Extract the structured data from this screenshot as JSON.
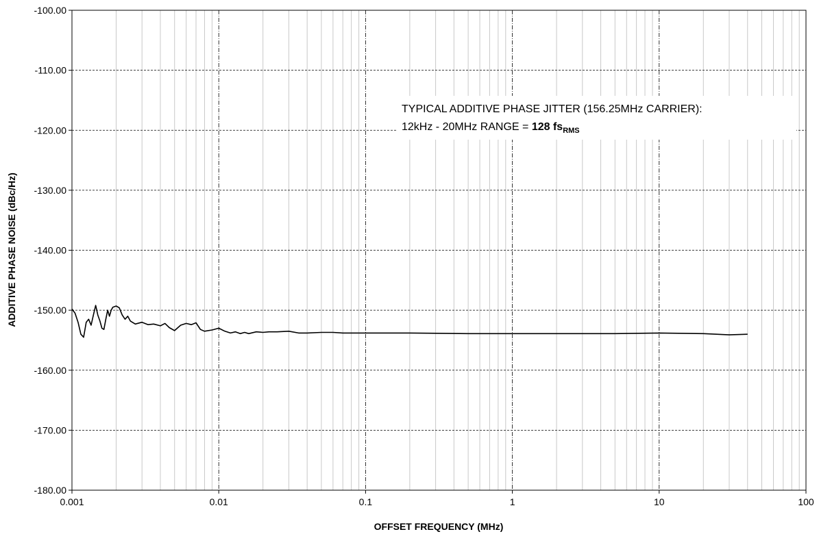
{
  "chart_data": {
    "type": "line",
    "title": "",
    "xlabel": "OFFSET FREQUENCY (MHz)",
    "ylabel": "ADDITIVE PHASE NOISE (dBc/Hz)",
    "x_scale": "log",
    "xlim": [
      0.001,
      100
    ],
    "ylim": [
      -180,
      -100
    ],
    "x_ticks": [
      0.001,
      0.01,
      0.1,
      1,
      10,
      100
    ],
    "x_tick_labels": [
      "0.001",
      "0.01",
      "0.1",
      "1",
      "10",
      "100"
    ],
    "y_ticks": [
      -100,
      -110,
      -120,
      -130,
      -140,
      -150,
      -160,
      -170,
      -180
    ],
    "y_tick_labels": [
      "-100.00",
      "-110.00",
      "-120.00",
      "-130.00",
      "-140.00",
      "-150.00",
      "-160.00",
      "-170.00",
      "-180.00"
    ],
    "grid": true,
    "line_color": "#000000",
    "annotation": {
      "line1": "TYPICAL ADDITIVE PHASE JITTER (156.25MHz CARRIER):",
      "line2_prefix": "12kHz - 20MHz RANGE = ",
      "line2_value": "128 fs",
      "line2_subscript": "RMS"
    },
    "series": [
      {
        "x": [
          0.001,
          0.00105,
          0.0011,
          0.00115,
          0.0012,
          0.00125,
          0.0013,
          0.00135,
          0.0014,
          0.00145,
          0.0015,
          0.00155,
          0.0016,
          0.00165,
          0.0017,
          0.00175,
          0.0018,
          0.00185,
          0.0019,
          0.002,
          0.0021,
          0.0022,
          0.0023,
          0.0024,
          0.0025,
          0.0027,
          0.003,
          0.0033,
          0.0036,
          0.004,
          0.0043,
          0.0046,
          0.005,
          0.0055,
          0.006,
          0.0065,
          0.007,
          0.0075,
          0.008,
          0.009,
          0.01,
          0.011,
          0.012,
          0.013,
          0.014,
          0.015,
          0.016,
          0.018,
          0.02,
          0.022,
          0.025,
          0.03,
          0.035,
          0.04,
          0.05,
          0.06,
          0.07,
          0.08,
          0.1,
          0.2,
          0.5,
          1,
          2,
          5,
          10,
          20,
          30,
          40
        ],
        "y": [
          -149.8,
          -150.5,
          -152.0,
          -154.0,
          -154.5,
          -152.0,
          -151.5,
          -152.5,
          -150.8,
          -149.2,
          -150.8,
          -151.8,
          -153.0,
          -153.2,
          -151.5,
          -150.0,
          -151.0,
          -150.0,
          -149.5,
          -149.3,
          -149.6,
          -150.8,
          -151.5,
          -151.0,
          -151.8,
          -152.3,
          -152.0,
          -152.4,
          -152.3,
          -152.6,
          -152.2,
          -152.9,
          -153.4,
          -152.5,
          -152.2,
          -152.4,
          -152.1,
          -153.2,
          -153.5,
          -153.3,
          -153.0,
          -153.5,
          -153.8,
          -153.6,
          -153.9,
          -153.7,
          -153.9,
          -153.6,
          -153.7,
          -153.6,
          -153.6,
          -153.5,
          -153.8,
          -153.8,
          -153.7,
          -153.7,
          -153.8,
          -153.8,
          -153.8,
          -153.8,
          -153.9,
          -153.9,
          -153.9,
          -153.9,
          -153.8,
          -153.9,
          -154.1,
          -154.0
        ]
      }
    ]
  }
}
